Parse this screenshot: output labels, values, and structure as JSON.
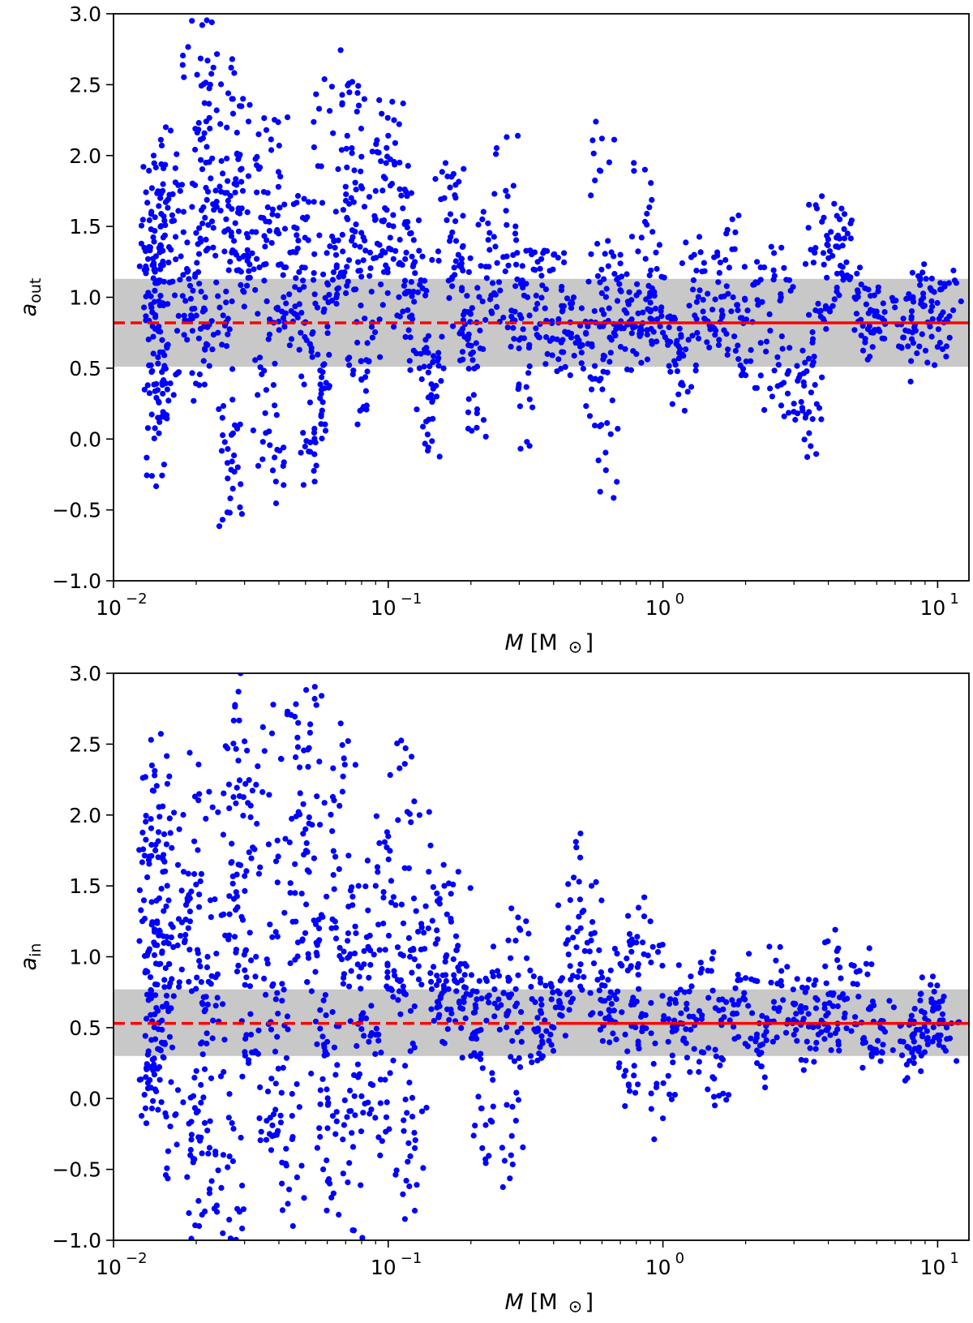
{
  "chart_data": [
    {
      "type": "scatter",
      "panel": "top",
      "xlabel": "M",
      "xlabel_unit": "[M",
      "xlabel_unit_close": "]",
      "ylabel": "a",
      "ylabel_sub": "out",
      "x_scale": "log",
      "xlim": [
        0.01,
        13
      ],
      "ylim": [
        -1.0,
        3.0
      ],
      "x_ticks": [
        {
          "value": 0.01,
          "base": "10",
          "exp": "−2"
        },
        {
          "value": 0.1,
          "base": "10",
          "exp": "−1"
        },
        {
          "value": 1,
          "base": "10",
          "exp": "0"
        },
        {
          "value": 10,
          "base": "10",
          "exp": "1"
        }
      ],
      "y_ticks": [
        {
          "value": -1.0,
          "label": "−1.0"
        },
        {
          "value": -0.5,
          "label": "−0.5"
        },
        {
          "value": 0.0,
          "label": "0.0"
        },
        {
          "value": 0.5,
          "label": "0.5"
        },
        {
          "value": 1.0,
          "label": "1.0"
        },
        {
          "value": 1.5,
          "label": "1.5"
        },
        {
          "value": 2.0,
          "label": "2.0"
        },
        {
          "value": 2.5,
          "label": "2.5"
        },
        {
          "value": 3.0,
          "label": "3.0"
        }
      ],
      "median": 0.82,
      "band": [
        0.51,
        1.13
      ],
      "dashed_until_x": 0.45,
      "point_color": "#0000ff",
      "line_color": "#ff0000",
      "band_color": "#c8c8c8",
      "points": [
        [
          0.0137,
          1.48
        ],
        [
          0.0138,
          1.77
        ],
        [
          0.014,
          2.0
        ],
        [
          0.0142,
          1.1
        ],
        [
          0.0145,
          0.15
        ],
        [
          0.0138,
          -0.26
        ],
        [
          0.0142,
          0.86
        ],
        [
          0.0148,
          1.7
        ],
        [
          0.0152,
          1.91
        ],
        [
          0.0155,
          2.2
        ],
        [
          0.0157,
          0.35
        ],
        [
          0.0147,
          0.12
        ],
        [
          0.0175,
          1.75
        ],
        [
          0.0185,
          1.2
        ],
        [
          0.0193,
          2.95
        ],
        [
          0.0197,
          0.92
        ],
        [
          0.0205,
          0.38
        ],
        [
          0.0217,
          1.95
        ],
        [
          0.022,
          2.67
        ],
        [
          0.0228,
          2.94
        ],
        [
          0.0225,
          2.5
        ],
        [
          0.024,
          0.75
        ],
        [
          0.026,
          1.82
        ],
        [
          0.0265,
          -0.52
        ],
        [
          0.0268,
          2.62
        ],
        [
          0.027,
          2.4
        ],
        [
          0.0272,
          -0.35
        ],
        [
          0.028,
          1.3
        ],
        [
          0.029,
          1.9
        ],
        [
          0.031,
          2.24
        ],
        [
          0.033,
          1.46
        ],
        [
          0.035,
          -0.02
        ],
        [
          0.036,
          2.18
        ],
        [
          0.038,
          1.62
        ],
        [
          0.039,
          -0.3
        ],
        [
          0.041,
          0.9
        ],
        [
          0.043,
          2.27
        ],
        [
          0.045,
          1.32
        ],
        [
          0.048,
          0.75
        ],
        [
          0.05,
          1.55
        ],
        [
          0.052,
          -0.09
        ],
        [
          0.054,
          -0.3
        ],
        [
          0.056,
          2.33
        ],
        [
          0.057,
          0.16
        ],
        [
          0.06,
          1.1
        ],
        [
          0.064,
          1.35
        ],
        [
          0.068,
          2.37
        ],
        [
          0.07,
          1.78
        ],
        [
          0.074,
          2.52
        ],
        [
          0.077,
          2.31
        ],
        [
          0.079,
          0.2
        ],
        [
          0.082,
          1.4
        ],
        [
          0.085,
          0.55
        ],
        [
          0.09,
          1.75
        ],
        [
          0.094,
          1.96
        ],
        [
          0.1,
          2.14
        ],
        [
          0.105,
          2.25
        ],
        [
          0.11,
          1.95
        ],
        [
          0.113,
          0.9
        ],
        [
          0.12,
          1.45
        ],
        [
          0.125,
          1.25
        ],
        [
          0.13,
          0.5
        ],
        [
          0.14,
          -0.06
        ],
        [
          0.15,
          0.3
        ],
        [
          0.16,
          1.7
        ],
        [
          0.17,
          1.85
        ],
        [
          0.18,
          1.3
        ],
        [
          0.19,
          0.9
        ],
        [
          0.2,
          0.6
        ],
        [
          0.21,
          0.08
        ],
        [
          0.22,
          1.55
        ],
        [
          0.24,
          1.1
        ],
        [
          0.27,
          2.13
        ],
        [
          0.29,
          1.45
        ],
        [
          0.3,
          0.7
        ],
        [
          0.32,
          -0.02
        ],
        [
          0.35,
          1.25
        ],
        [
          0.38,
          0.6
        ],
        [
          0.4,
          1.3
        ],
        [
          0.43,
          0.9
        ],
        [
          0.46,
          0.45
        ],
        [
          0.5,
          0.8
        ],
        [
          0.55,
          0.35
        ],
        [
          0.58,
          1.15
        ],
        [
          0.6,
          2.12
        ],
        [
          0.62,
          -0.22
        ],
        [
          0.65,
          0.7
        ],
        [
          0.7,
          1.3
        ],
        [
          0.75,
          0.95
        ],
        [
          0.8,
          0.6
        ],
        [
          0.86,
          1.9
        ],
        [
          0.9,
          0.9
        ],
        [
          0.95,
          1.2
        ],
        [
          1.0,
          0.75
        ],
        [
          1.1,
          0.55
        ],
        [
          1.2,
          0.2
        ],
        [
          1.3,
          1.3
        ],
        [
          1.4,
          0.9
        ],
        [
          1.6,
          0.7
        ],
        [
          1.7,
          1.45
        ],
        [
          1.8,
          1.0
        ],
        [
          2.0,
          0.45
        ],
        [
          2.2,
          1.25
        ],
        [
          2.5,
          0.3
        ],
        [
          2.7,
          1.35
        ],
        [
          3.0,
          0.25
        ],
        [
          3.3,
          0.15
        ],
        [
          3.45,
          -0.05
        ],
        [
          3.6,
          1.65
        ],
        [
          3.7,
          0.9
        ],
        [
          4.2,
          1.66
        ],
        [
          4.4,
          1.55
        ],
        [
          4.7,
          1.45
        ],
        [
          5.5,
          0.95
        ],
        [
          5.8,
          0.65
        ],
        [
          6.0,
          0.9
        ],
        [
          7.5,
          0.85
        ],
        [
          8.0,
          0.55
        ],
        [
          8.5,
          1.15
        ],
        [
          9.5,
          1.05
        ],
        [
          10.0,
          0.65
        ],
        [
          11.0,
          1.1
        ]
      ]
    },
    {
      "type": "scatter",
      "panel": "bottom",
      "xlabel": "M",
      "xlabel_unit": "[M",
      "xlabel_unit_close": "]",
      "ylabel": "a",
      "ylabel_sub": "in",
      "x_scale": "log",
      "xlim": [
        0.01,
        13
      ],
      "ylim": [
        -1.0,
        3.0
      ],
      "x_ticks": [
        {
          "value": 0.01,
          "base": "10",
          "exp": "−2"
        },
        {
          "value": 0.1,
          "base": "10",
          "exp": "−1"
        },
        {
          "value": 1,
          "base": "10",
          "exp": "0"
        },
        {
          "value": 10,
          "base": "10",
          "exp": "1"
        }
      ],
      "y_ticks": [
        {
          "value": -1.0,
          "label": "−1.0"
        },
        {
          "value": -0.5,
          "label": "−0.5"
        },
        {
          "value": 0.0,
          "label": "0.0"
        },
        {
          "value": 0.5,
          "label": "0.5"
        },
        {
          "value": 1.0,
          "label": "1.0"
        },
        {
          "value": 1.5,
          "label": "1.5"
        },
        {
          "value": 2.0,
          "label": "2.0"
        },
        {
          "value": 2.5,
          "label": "2.5"
        },
        {
          "value": 3.0,
          "label": "3.0"
        }
      ],
      "median": 0.53,
      "band": [
        0.3,
        0.77
      ],
      "dashed_until_x": 0.45,
      "point_color": "#0000ff",
      "line_color": "#ff0000",
      "band_color": "#c8c8c8",
      "points": [
        [
          0.0137,
          2.53
        ],
        [
          0.0138,
          2.35
        ],
        [
          0.014,
          2.17
        ],
        [
          0.0142,
          1.75
        ],
        [
          0.0144,
          1.25
        ],
        [
          0.0146,
          1.15
        ],
        [
          0.0148,
          0.95
        ],
        [
          0.015,
          0.55
        ],
        [
          0.0138,
          -0.07
        ],
        [
          0.0143,
          0.05
        ],
        [
          0.0145,
          0.35
        ],
        [
          0.0157,
          2.22
        ],
        [
          0.0155,
          -0.54
        ],
        [
          0.018,
          1.6
        ],
        [
          0.019,
          1.25
        ],
        [
          0.0195,
          -0.45
        ],
        [
          0.0198,
          2.13
        ],
        [
          0.0205,
          -0.9
        ],
        [
          0.021,
          -0.82
        ],
        [
          0.022,
          1.0
        ],
        [
          0.023,
          0.55
        ],
        [
          0.024,
          2.02
        ],
        [
          0.025,
          -0.95
        ],
        [
          0.026,
          2.47
        ],
        [
          0.027,
          -1.0
        ],
        [
          0.0285,
          2.87
        ],
        [
          0.029,
          3.0
        ],
        [
          0.03,
          2.52
        ],
        [
          0.031,
          0.25
        ],
        [
          0.033,
          1.0
        ],
        [
          0.035,
          2.62
        ],
        [
          0.037,
          -0.25
        ],
        [
          0.039,
          0.7
        ],
        [
          0.041,
          -0.6
        ],
        [
          0.043,
          2.73
        ],
        [
          0.045,
          -0.9
        ],
        [
          0.047,
          2.65
        ],
        [
          0.05,
          1.9
        ],
        [
          0.052,
          2.64
        ],
        [
          0.054,
          2.82
        ],
        [
          0.056,
          1.2
        ],
        [
          0.058,
          -0.5
        ],
        [
          0.06,
          0.4
        ],
        [
          0.063,
          2.33
        ],
        [
          0.066,
          -0.82
        ],
        [
          0.069,
          2.4
        ],
        [
          0.072,
          1.0
        ],
        [
          0.075,
          -0.93
        ],
        [
          0.078,
          1.5
        ],
        [
          0.081,
          -0.1
        ],
        [
          0.085,
          0.4
        ],
        [
          0.09,
          1.5
        ],
        [
          0.095,
          -0.3
        ],
        [
          0.1,
          1.85
        ],
        [
          0.105,
          0.9
        ],
        [
          0.11,
          2.33
        ],
        [
          0.115,
          -0.85
        ],
        [
          0.12,
          1.0
        ],
        [
          0.125,
          -0.35
        ],
        [
          0.13,
          2.0
        ],
        [
          0.14,
          1.2
        ],
        [
          0.15,
          0.8
        ],
        [
          0.16,
          1.5
        ],
        [
          0.17,
          0.6
        ],
        [
          0.18,
          1.6
        ],
        [
          0.19,
          0.95
        ],
        [
          0.2,
          0.3
        ],
        [
          0.21,
          0.7
        ],
        [
          0.22,
          -0.35
        ],
        [
          0.25,
          0.9
        ],
        [
          0.27,
          0.6
        ],
        [
          0.28,
          -0.4
        ],
        [
          0.3,
          1.2
        ],
        [
          0.33,
          0.3
        ],
        [
          0.36,
          0.7
        ],
        [
          0.4,
          0.5
        ],
        [
          0.43,
          0.85
        ],
        [
          0.46,
          1.4
        ],
        [
          0.5,
          1.7
        ],
        [
          0.55,
          1.5
        ],
        [
          0.6,
          0.8
        ],
        [
          0.65,
          0.55
        ],
        [
          0.7,
          0.95
        ],
        [
          0.75,
          0.1
        ],
        [
          0.8,
          1.1
        ],
        [
          0.85,
          0.5
        ],
        [
          0.9,
          1.25
        ],
        [
          1.0,
          -0.14
        ],
        [
          1.1,
          0.55
        ],
        [
          1.2,
          0.75
        ],
        [
          1.3,
          0.35
        ],
        [
          1.5,
          0.9
        ],
        [
          1.6,
          0.02
        ],
        [
          1.8,
          0.6
        ],
        [
          2.0,
          0.85
        ],
        [
          2.2,
          0.25
        ],
        [
          2.4,
          0.55
        ],
        [
          2.7,
          0.9
        ],
        [
          3.0,
          0.45
        ],
        [
          3.3,
          0.75
        ],
        [
          3.6,
          0.35
        ],
        [
          4.0,
          0.5
        ],
        [
          4.3,
          1.04
        ],
        [
          4.6,
          0.6
        ],
        [
          5.2,
          0.9
        ],
        [
          5.8,
          0.35
        ],
        [
          6.2,
          0.5
        ],
        [
          7.5,
          0.4
        ],
        [
          8.2,
          0.25
        ],
        [
          8.8,
          0.45
        ],
        [
          9.5,
          0.7
        ],
        [
          10.2,
          0.55
        ],
        [
          10.8,
          0.42
        ]
      ]
    }
  ]
}
